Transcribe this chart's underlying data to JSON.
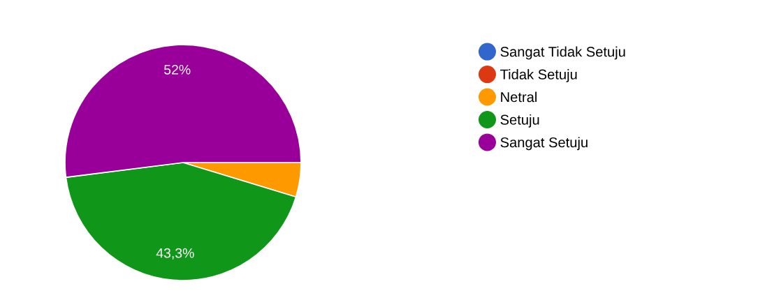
{
  "chart_data": {
    "type": "pie",
    "categories": [
      "Sangat Tidak Setuju",
      "Tidak Setuju",
      "Netral",
      "Setuju",
      "Sangat Setuju"
    ],
    "values": [
      0,
      0,
      4.7,
      43.3,
      52
    ],
    "colors": [
      "#3366cc",
      "#dc3912",
      "#ff9900",
      "#109618",
      "#990099"
    ],
    "value_labels": [
      null,
      null,
      null,
      "43,3%",
      "52%"
    ],
    "legend": "right"
  }
}
